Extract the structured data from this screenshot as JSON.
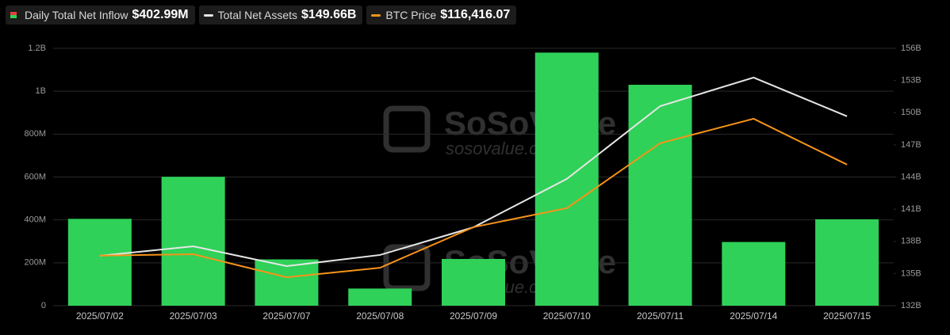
{
  "chart_data": {
    "type": "combo",
    "watermark": [
      "SoSoValue",
      "sosovalue.com"
    ],
    "categories": [
      "2025/07/02",
      "2025/07/03",
      "2025/07/07",
      "2025/07/08",
      "2025/07/09",
      "2025/07/10",
      "2025/07/11",
      "2025/07/14",
      "2025/07/15"
    ],
    "ylim": [
      0,
      1200000000
    ],
    "yticks": [
      0,
      {
        "value": 200000000,
        "label": "200M"
      },
      {
        "value": 400000000,
        "label": "400M"
      },
      {
        "value": 600000000,
        "label": "600M"
      },
      {
        "value": 800000000,
        "label": "800M"
      },
      {
        "value": 1000000000,
        "label": "1B"
      },
      {
        "value": 1200000000,
        "label": "1.2B"
      }
    ],
    "y2lim": [
      132,
      156
    ],
    "y2ticks": [
      {
        "value": 132,
        "label": "132B"
      },
      {
        "value": 135,
        "label": "135B"
      },
      {
        "value": 138,
        "label": "138B"
      },
      {
        "value": 141,
        "label": "141B"
      },
      {
        "value": 144,
        "label": "144B"
      },
      {
        "value": 147,
        "label": "147B"
      },
      {
        "value": 150,
        "label": "150B"
      },
      {
        "value": 153,
        "label": "153B"
      },
      {
        "value": 156,
        "label": "156B"
      }
    ],
    "y3lim": [
      106000,
      125000
    ],
    "grid": true,
    "series": [
      {
        "name": "Daily Total Net Inflow",
        "legend_value": "$402.99M",
        "type": "bar",
        "axis": "y",
        "color": "#2fd158",
        "values": [
          405000000,
          601000000,
          216000000,
          80000000,
          218000000,
          1180000000,
          1030000000,
          297000000,
          402990000
        ]
      },
      {
        "name": "Total Net Assets",
        "legend_value": "$149.66B",
        "type": "line",
        "axis": "y2",
        "color": "#e6e6e6",
        "values": [
          136.65,
          137.54,
          135.69,
          136.73,
          139.31,
          143.82,
          150.61,
          153.27,
          149.66
        ]
      },
      {
        "name": "BTC Price",
        "legend_value": "$116,416.07",
        "type": "line",
        "axis": "y3",
        "color": "#f7931a",
        "values": [
          109700,
          109800,
          108100,
          108800,
          111800,
          113200,
          118000,
          119800,
          116416.07
        ]
      }
    ]
  }
}
